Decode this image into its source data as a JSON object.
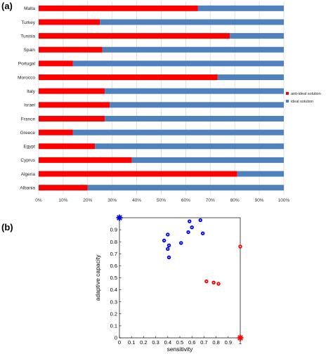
{
  "panels": {
    "a_label": "(a)",
    "b_label": "(b)"
  },
  "colors": {
    "anti_ideal": "#ff0000",
    "ideal": "#4f81bd",
    "scatter_blue": "#0000ff",
    "scatter_red": "#ff0000",
    "grid": "#d9d9d9"
  },
  "chart_data": [
    {
      "type": "bar",
      "orientation": "horizontal",
      "stacked": true,
      "title": "",
      "xlabel": "",
      "ylabel": "",
      "xlim": [
        0,
        100
      ],
      "x_ticks": [
        "0%",
        "10%",
        "20%",
        "30%",
        "40%",
        "50%",
        "60%",
        "70%",
        "80%",
        "90%",
        "100%"
      ],
      "grid": true,
      "legend_position": "right",
      "categories": [
        "Malta",
        "Turkey",
        "Tunisia",
        "Spain",
        "Portugal",
        "Morocco",
        "Italy",
        "Israel",
        "France",
        "Greece",
        "Egypt",
        "Cyprus",
        "Algeria",
        "Albania"
      ],
      "series": [
        {
          "name": "anti-ideal solution",
          "values": [
            65,
            25,
            78,
            26,
            14,
            73,
            27,
            29,
            27,
            14,
            23,
            38,
            81,
            20
          ]
        },
        {
          "name": "ideal solution",
          "values": [
            35,
            75,
            22,
            74,
            86,
            27,
            73,
            71,
            73,
            86,
            77,
            62,
            19,
            80
          ]
        }
      ]
    },
    {
      "type": "scatter",
      "title": "",
      "xlabel": "sensitivity",
      "ylabel": "adaptive capacity",
      "xlim": [
        0,
        1
      ],
      "ylim": [
        0,
        1
      ],
      "x_ticks": [
        "0",
        "0.1",
        "0.2",
        "0.3",
        "0.4",
        "0.5",
        "0.6",
        "0.7",
        "0.8",
        "0.9",
        "1"
      ],
      "y_ticks": [
        "0",
        "0.1",
        "0.2",
        "0.3",
        "0.4",
        "0.5",
        "0.6",
        "0.7",
        "0.8",
        "0.9"
      ],
      "grid": false,
      "series": [
        {
          "color": "blue",
          "marker": "circle",
          "x": [
            0.37,
            0.4,
            0.4,
            0.41,
            0.41,
            0.51,
            0.57,
            0.58,
            0.6,
            0.67,
            0.69
          ],
          "y": [
            0.81,
            0.86,
            0.74,
            0.67,
            0.77,
            0.79,
            0.88,
            0.97,
            0.92,
            0.98,
            0.87
          ]
        },
        {
          "color": "red",
          "marker": "circle",
          "x": [
            0.72,
            0.78,
            0.82,
            1.0
          ],
          "y": [
            0.47,
            0.46,
            0.45,
            0.76
          ]
        },
        {
          "color": "blue",
          "marker": "star",
          "x": [
            0.0
          ],
          "y": [
            1.0
          ]
        },
        {
          "color": "red",
          "marker": "star",
          "x": [
            1.0
          ],
          "y": [
            0.0
          ]
        }
      ]
    }
  ]
}
